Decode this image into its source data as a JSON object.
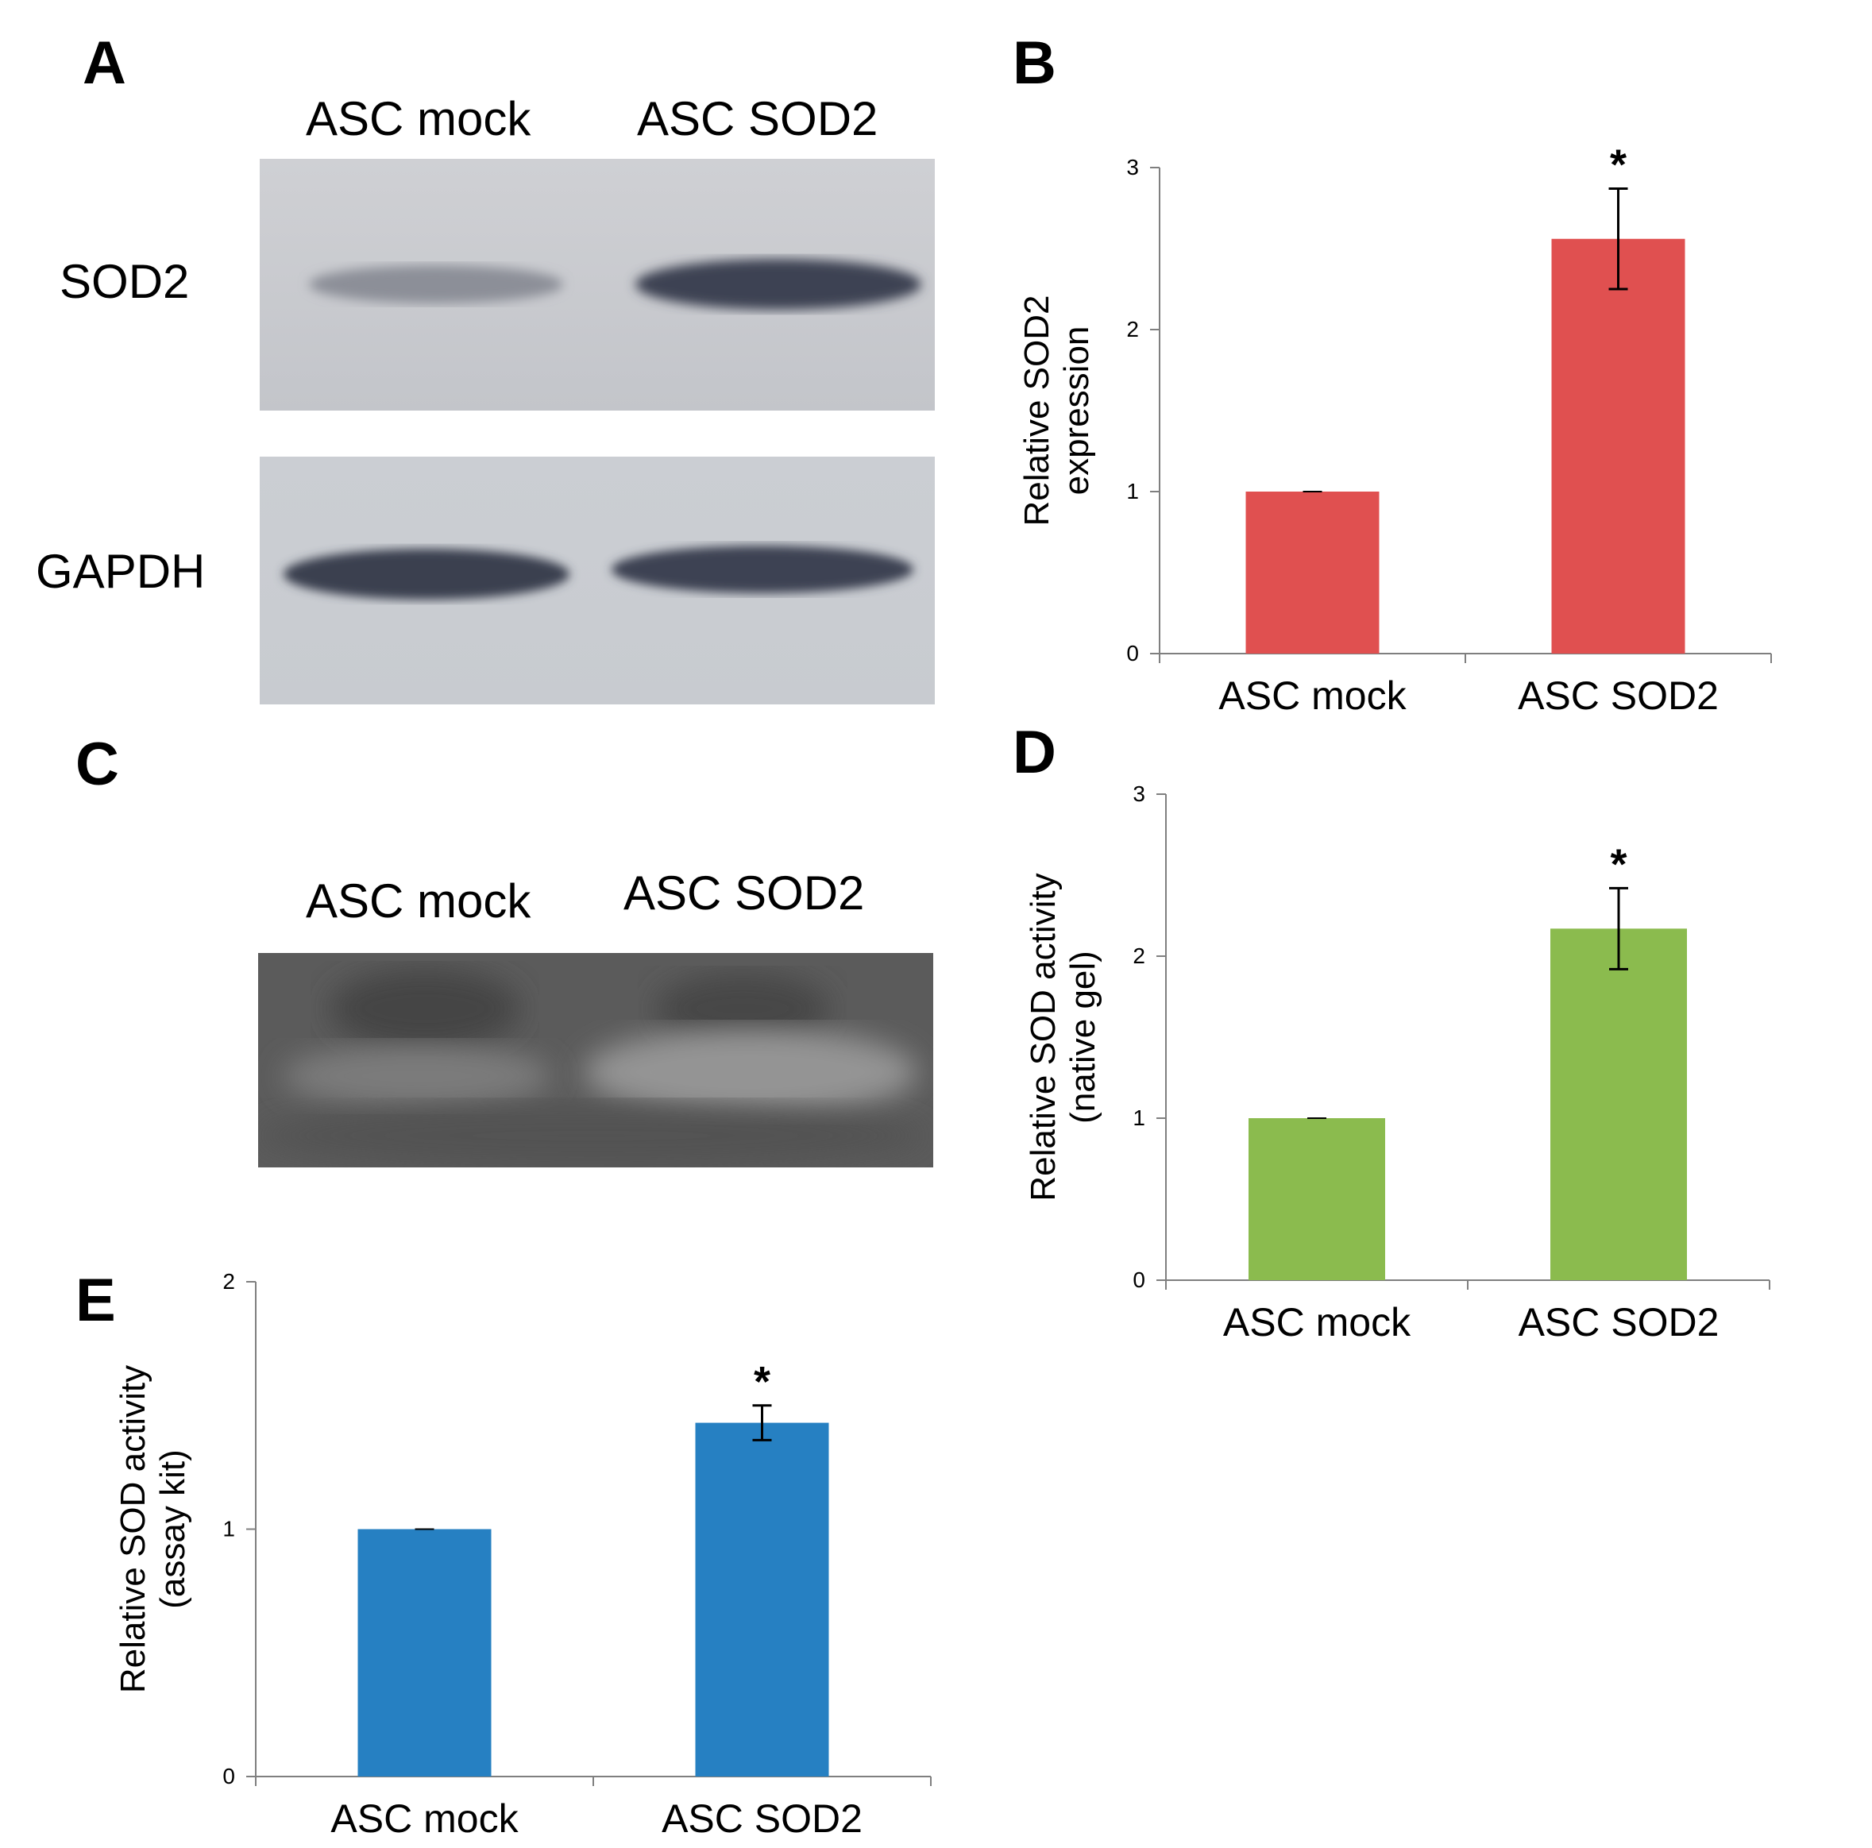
{
  "panels": {
    "a": {
      "letter": "A",
      "lanes": [
        "ASC mock",
        "ASC SOD2"
      ],
      "rows": [
        "SOD2",
        "GAPDH"
      ]
    },
    "c": {
      "letter": "C",
      "lanes": [
        "ASC mock",
        "ASC SOD2"
      ]
    }
  },
  "chart_data": [
    {
      "panel": "B",
      "type": "bar",
      "categories": [
        "ASC mock",
        "ASC SOD2"
      ],
      "values": [
        1.0,
        2.56
      ],
      "errors": [
        0.0,
        0.31
      ],
      "significance": [
        "",
        "*"
      ],
      "ylabel": [
        "Relative SOD2",
        "expression"
      ],
      "xlabel": "",
      "ylim": [
        0,
        3
      ],
      "yticks": [
        "0",
        "1",
        "2",
        "3"
      ],
      "color": "#e05050",
      "grid": false,
      "legend": null
    },
    {
      "panel": "D",
      "type": "bar",
      "categories": [
        "ASC mock",
        "ASC SOD2"
      ],
      "values": [
        1.0,
        2.17
      ],
      "errors": [
        0.0,
        0.25
      ],
      "significance": [
        "",
        "*"
      ],
      "ylabel": [
        "Relative SOD activity",
        "(native gel)"
      ],
      "xlabel": "",
      "ylim": [
        0,
        3
      ],
      "yticks": [
        "0",
        "1",
        "2",
        "3"
      ],
      "color": "#8bbb4e",
      "grid": false,
      "legend": null
    },
    {
      "panel": "E",
      "type": "bar",
      "categories": [
        "ASC mock",
        "ASC SOD2"
      ],
      "values": [
        1.0,
        1.43
      ],
      "errors": [
        0.0,
        0.07
      ],
      "significance": [
        "",
        "*"
      ],
      "ylabel": [
        "Relative SOD activity",
        "(assay kit)"
      ],
      "xlabel": "",
      "ylim": [
        0,
        2
      ],
      "yticks": [
        "0",
        "1",
        "2"
      ],
      "color": "#2680c2",
      "grid": false,
      "legend": null
    }
  ]
}
